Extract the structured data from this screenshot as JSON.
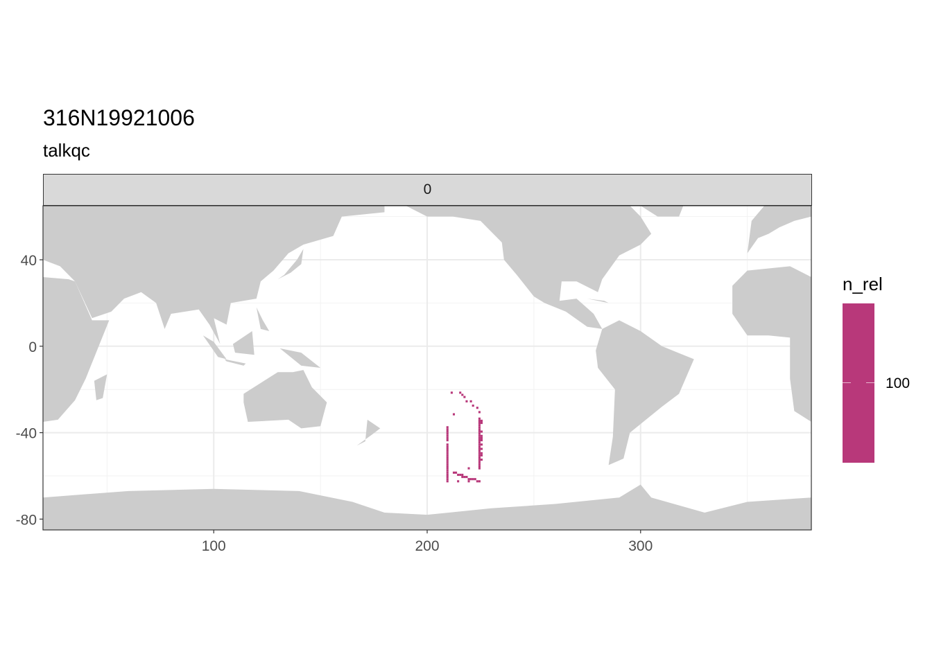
{
  "chart_data": {
    "type": "heatmap",
    "title": "316N19921006",
    "subtitle": "talkqc",
    "facet_label": "0",
    "xlabel": "",
    "ylabel": "",
    "xlim": [
      20,
      380
    ],
    "ylim": [
      -85,
      65
    ],
    "x_ticks": [
      100,
      200,
      300
    ],
    "y_ticks": [
      -80,
      -40,
      0,
      40
    ],
    "x_tick_labels": [
      "100",
      "200",
      "300"
    ],
    "y_tick_labels": [
      "-80",
      "-40",
      "0",
      "40"
    ],
    "grid": true,
    "land_color": "#cccccc",
    "legend": {
      "title": "n_rel",
      "position": "right",
      "tick_labels": [
        "100"
      ],
      "color": "#B8387A"
    },
    "series": [
      {
        "color": "#B8387A",
        "points": [
          [
            211.5,
            -21.5
          ],
          [
            215.5,
            -21.5
          ],
          [
            216.5,
            -22.5
          ],
          [
            217.5,
            -23.5
          ],
          [
            218.5,
            -25.5
          ],
          [
            220.5,
            -25.5
          ],
          [
            221.5,
            -27.5
          ],
          [
            223.5,
            -28.5
          ],
          [
            212.5,
            -31.5
          ],
          [
            224.5,
            -30.5
          ],
          [
            224.5,
            -33.5
          ],
          [
            224.5,
            -34.5
          ],
          [
            225.5,
            -34.5
          ],
          [
            224.5,
            -35.5
          ],
          [
            225.5,
            -35.5
          ],
          [
            224.5,
            -36.5
          ],
          [
            224.5,
            -37.5
          ],
          [
            224.5,
            -38.5
          ],
          [
            224.5,
            -39.5
          ],
          [
            225.5,
            -39.5
          ],
          [
            224.5,
            -40.5
          ],
          [
            224.5,
            -41.5
          ],
          [
            225.5,
            -41.5
          ],
          [
            224.5,
            -42.5
          ],
          [
            225.5,
            -42.5
          ],
          [
            224.5,
            -43.5
          ],
          [
            225.5,
            -43.5
          ],
          [
            224.5,
            -44.5
          ],
          [
            224.5,
            -45.5
          ],
          [
            225.5,
            -45.5
          ],
          [
            224.5,
            -46.5
          ],
          [
            224.5,
            -47.5
          ],
          [
            225.5,
            -47.5
          ],
          [
            224.5,
            -48.5
          ],
          [
            224.5,
            -49.5
          ],
          [
            225.5,
            -49.5
          ],
          [
            224.5,
            -50.5
          ],
          [
            225.5,
            -50.5
          ],
          [
            224.5,
            -51.5
          ],
          [
            224.5,
            -52.5
          ],
          [
            225.5,
            -52.5
          ],
          [
            224.5,
            -53.5
          ],
          [
            224.5,
            -54.5
          ],
          [
            224.5,
            -55.5
          ],
          [
            224.5,
            -56.5
          ],
          [
            219.5,
            -56.5
          ],
          [
            209.5,
            -37.5
          ],
          [
            209.5,
            -38.5
          ],
          [
            209.5,
            -39.5
          ],
          [
            209.5,
            -40.5
          ],
          [
            209.5,
            -41.5
          ],
          [
            209.5,
            -42.5
          ],
          [
            209.5,
            -43.5
          ],
          [
            209.5,
            -45.5
          ],
          [
            209.5,
            -46.5
          ],
          [
            209.5,
            -47.5
          ],
          [
            209.5,
            -48.5
          ],
          [
            209.5,
            -49.5
          ],
          [
            209.5,
            -50.5
          ],
          [
            209.5,
            -51.5
          ],
          [
            209.5,
            -52.5
          ],
          [
            209.5,
            -53.5
          ],
          [
            209.5,
            -54.5
          ],
          [
            209.5,
            -55.5
          ],
          [
            209.5,
            -56.5
          ],
          [
            209.5,
            -57.5
          ],
          [
            209.5,
            -58.5
          ],
          [
            209.5,
            -59.5
          ],
          [
            209.5,
            -60.5
          ],
          [
            209.5,
            -61.5
          ],
          [
            209.5,
            -62.5
          ],
          [
            212.5,
            -58.5
          ],
          [
            213.5,
            -58.5
          ],
          [
            214.5,
            -59.5
          ],
          [
            215.5,
            -59.5
          ],
          [
            216.5,
            -59.5
          ],
          [
            216.5,
            -60.5
          ],
          [
            217.5,
            -60.5
          ],
          [
            218.5,
            -60.5
          ],
          [
            219.5,
            -61.5
          ],
          [
            220.5,
            -61.5
          ],
          [
            221.5,
            -61.5
          ],
          [
            222.5,
            -61.5
          ],
          [
            223.5,
            -62.5
          ],
          [
            224.5,
            -62.5
          ],
          [
            214.5,
            -62.5
          ],
          [
            219.5,
            -62.5
          ]
        ]
      }
    ]
  }
}
